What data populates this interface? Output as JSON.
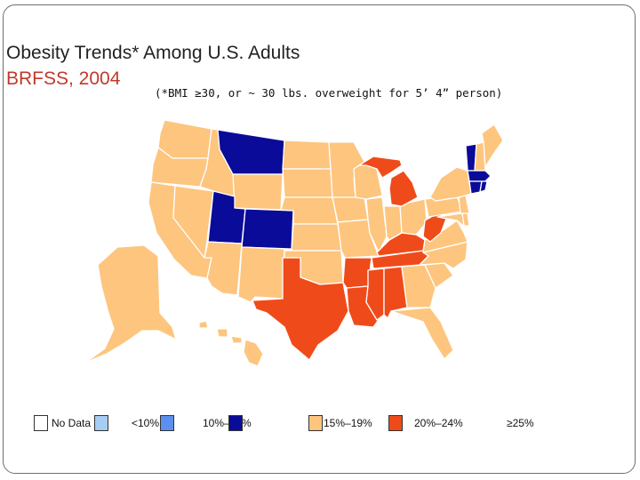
{
  "title": {
    "line1": "Obesity Trends* Among U.S. Adults",
    "line2": "BRFSS, 2004",
    "subtitle": "(*BMI ≥30, or ~ 30 lbs. overweight for 5’ 4” person)"
  },
  "colors": {
    "title_accent": "#c0392b",
    "no_data": "#ffffff",
    "lt10": "#a6cdf3",
    "p10_14": "#5b8ff0",
    "p15_19": "#0b0b99",
    "p20_24": "#fdc57e",
    "ge25": "#ef4b1a",
    "state_border": "#ffffff"
  },
  "legend": [
    {
      "label": "No Data",
      "color": "#ffffff"
    },
    {
      "label": "<10%",
      "color": "#a6cdf3"
    },
    {
      "label": "10%–14%",
      "color": "#5b8ff0"
    },
    {
      "label": "15%–19%",
      "color": "#0b0b99"
    },
    {
      "label": "20%–24%",
      "color": "#fdc57e"
    },
    {
      "label": "≥25%",
      "color": "#ef4b1a"
    }
  ],
  "state_categories": {
    "15-19": [
      "MT",
      "UT",
      "CO",
      "VT",
      "CT",
      "MA",
      "RI"
    ],
    "25+": [
      "MI",
      "TX",
      "LA",
      "AR",
      "MS",
      "AL",
      "TN",
      "KY",
      "WV"
    ]
  }
}
